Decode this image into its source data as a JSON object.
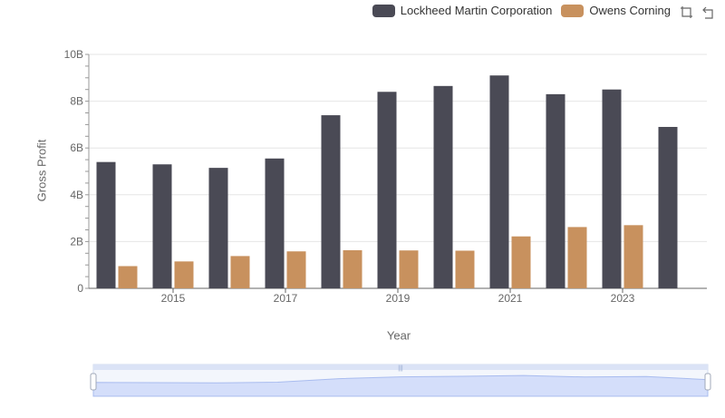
{
  "chart_data": {
    "type": "bar",
    "categories": [
      2014,
      2015,
      2016,
      2017,
      2018,
      2019,
      2020,
      2021,
      2022,
      2023,
      2024
    ],
    "xtick_labels": [
      "2015",
      "2017",
      "2019",
      "2021",
      "2023"
    ],
    "series": [
      {
        "name": "Lockheed Martin Corporation",
        "color": "#4a4a55",
        "values": [
          5.4,
          5.3,
          5.15,
          5.55,
          7.4,
          8.4,
          8.65,
          9.1,
          8.3,
          8.5,
          6.9
        ]
      },
      {
        "name": "Owens Corning",
        "color": "#c8915e",
        "values": [
          0.95,
          1.15,
          1.38,
          1.58,
          1.63,
          1.62,
          1.61,
          2.22,
          2.62,
          2.7,
          null
        ]
      }
    ],
    "ylim": [
      0,
      10
    ],
    "yticks": [
      "0",
      "2B",
      "4B",
      "6B",
      "8B",
      "10B"
    ],
    "xlabel": "Year",
    "ylabel": "Gross Profit",
    "grid": true,
    "legend_position": "top-right",
    "datazoom_range": [
      0,
      1
    ]
  }
}
